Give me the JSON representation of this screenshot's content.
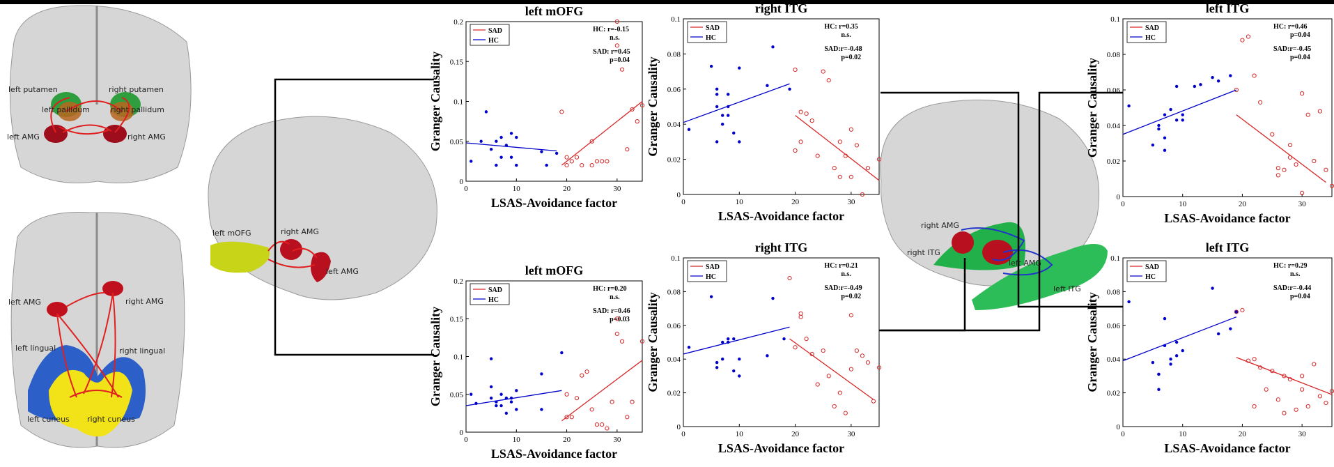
{
  "chart_data": [
    {
      "type": "scatter",
      "title": "left mOFG",
      "x_label": "LSAS-Avoidance factor",
      "y_label": "Granger Causality",
      "xlim": [
        0,
        35
      ],
      "ylim": [
        0,
        0.2
      ],
      "xticks": [
        0,
        10,
        20,
        30
      ],
      "yticks": [
        0,
        0.05,
        0.1,
        0.15,
        0.2
      ],
      "annotations": [
        "HC:  r=-0.15",
        "n.s.",
        "SAD: r=0.45",
        "p=0.04"
      ],
      "series": [
        {
          "name": "SAD",
          "color": "#d62728",
          "marker": "open",
          "x": [
            19,
            20,
            21,
            22,
            23,
            25,
            26,
            27,
            28,
            30,
            30,
            31,
            32,
            34,
            33,
            35,
            25,
            20
          ],
          "values": [
            0.087,
            0.03,
            0.025,
            0.03,
            0.02,
            0.05,
            0.025,
            0.025,
            0.025,
            0.2,
            0.17,
            0.14,
            0.04,
            0.075,
            0.09,
            0.095,
            0.02,
            0.02
          ],
          "fit": {
            "x": [
              19,
              35
            ],
            "values": [
              0.02,
              0.1
            ]
          }
        },
        {
          "name": "HC",
          "color": "#0000cc",
          "marker": "filled",
          "x": [
            1,
            3,
            4,
            5,
            6,
            6,
            7,
            7,
            8,
            9,
            9,
            10,
            10,
            15,
            16,
            18
          ],
          "values": [
            0.025,
            0.05,
            0.087,
            0.04,
            0.02,
            0.05,
            0.03,
            0.055,
            0.045,
            0.03,
            0.06,
            0.02,
            0.055,
            0.037,
            0.02,
            0.035
          ],
          "fit": {
            "x": [
              0,
              18
            ],
            "values": [
              0.048,
              0.038
            ]
          }
        }
      ]
    },
    {
      "type": "scatter",
      "title": "right ITG",
      "x_label": "LSAS-Avoidance factor",
      "y_label": "Granger Causality",
      "xlim": [
        0,
        35
      ],
      "ylim": [
        0,
        0.1
      ],
      "xticks": [
        0,
        10,
        20,
        30
      ],
      "yticks": [
        0,
        0.02,
        0.04,
        0.06,
        0.08,
        0.1
      ],
      "annotations": [
        "HC:  r=0.35",
        "n.s.",
        "SAD:r=-0.48",
        "p=0.02"
      ],
      "series": [
        {
          "name": "SAD",
          "color": "#d62728",
          "marker": "open",
          "x": [
            20,
            20,
            21,
            22,
            23,
            24,
            25,
            26,
            27,
            28,
            28,
            29,
            30,
            31,
            32,
            33,
            35,
            30,
            21
          ],
          "values": [
            0.071,
            0.025,
            0.047,
            0.046,
            0.042,
            0.022,
            0.07,
            0.065,
            0.015,
            0.03,
            0.01,
            0.022,
            0.037,
            0.028,
            0.0,
            0.015,
            0.02,
            0.01,
            0.03
          ],
          "fit": {
            "x": [
              20,
              35
            ],
            "values": [
              0.045,
              0.008
            ]
          }
        },
        {
          "name": "HC",
          "color": "#0000cc",
          "marker": "filled",
          "x": [
            1,
            5,
            6,
            6,
            6,
            7,
            7,
            8,
            8,
            9,
            10,
            10,
            15,
            16,
            19,
            6,
            8
          ],
          "values": [
            0.037,
            0.073,
            0.057,
            0.06,
            0.05,
            0.045,
            0.04,
            0.057,
            0.045,
            0.035,
            0.072,
            0.03,
            0.062,
            0.084,
            0.06,
            0.03,
            0.05
          ],
          "fit": {
            "x": [
              0,
              19
            ],
            "values": [
              0.041,
              0.063
            ]
          }
        }
      ]
    },
    {
      "type": "scatter",
      "title": "left ITG",
      "x_label": "LSAS-Avoidance factor",
      "y_label": "Granger Causality",
      "xlim": [
        0,
        35
      ],
      "ylim": [
        0,
        0.1
      ],
      "xticks": [
        0,
        10,
        20,
        30
      ],
      "yticks": [
        0,
        0.02,
        0.04,
        0.06,
        0.08,
        0.1
      ],
      "annotations": [
        "HC:  r=0.46",
        "p=0.04",
        "SAD:r=-0.45",
        "p=0.04"
      ],
      "series": [
        {
          "name": "SAD",
          "color": "#d62728",
          "marker": "open",
          "x": [
            19,
            20,
            21,
            22,
            23,
            25,
            26,
            27,
            28,
            29,
            30,
            30,
            31,
            32,
            33,
            34,
            35,
            26,
            28
          ],
          "values": [
            0.06,
            0.088,
            0.09,
            0.068,
            0.053,
            0.035,
            0.016,
            0.015,
            0.029,
            0.018,
            0.002,
            0.058,
            0.046,
            0.02,
            0.048,
            0.015,
            0.006,
            0.012,
            0.022
          ],
          "fit": {
            "x": [
              19,
              34
            ],
            "values": [
              0.046,
              0.008
            ]
          }
        },
        {
          "name": "HC",
          "color": "#0000cc",
          "marker": "filled",
          "x": [
            1,
            5,
            6,
            7,
            7,
            8,
            9,
            9,
            10,
            10,
            12,
            13,
            15,
            16,
            18,
            7,
            6
          ],
          "values": [
            0.051,
            0.029,
            0.04,
            0.046,
            0.033,
            0.049,
            0.043,
            0.062,
            0.046,
            0.043,
            0.062,
            0.063,
            0.067,
            0.065,
            0.068,
            0.026,
            0.038
          ],
          "fit": {
            "x": [
              0,
              19
            ],
            "values": [
              0.035,
              0.06
            ]
          }
        }
      ]
    },
    {
      "type": "scatter",
      "title": "left mOFG",
      "x_label": "LSAS-Avoidance factor",
      "y_label": "Granger Causality",
      "xlim": [
        0,
        35
      ],
      "ylim": [
        0,
        0.2
      ],
      "xticks": [
        0,
        10,
        20,
        30
      ],
      "yticks": [
        0,
        0.05,
        0.1,
        0.15,
        0.2
      ],
      "annotations": [
        "HC:  r=0.20",
        "n.s.",
        "SAD: r=0.46",
        "p=0.03"
      ],
      "series": [
        {
          "name": "SAD",
          "color": "#d62728",
          "marker": "open",
          "x": [
            20,
            20,
            22,
            23,
            24,
            25,
            26,
            27,
            29,
            30,
            30,
            31,
            32,
            33,
            35,
            28,
            21
          ],
          "values": [
            0.05,
            0.02,
            0.045,
            0.075,
            0.08,
            0.03,
            0.01,
            0.01,
            0.04,
            0.15,
            0.13,
            0.12,
            0.02,
            0.04,
            0.12,
            0.005,
            0.02
          ],
          "fit": {
            "x": [
              19,
              35
            ],
            "values": [
              0.015,
              0.095
            ]
          }
        },
        {
          "name": "HC",
          "color": "#0000cc",
          "marker": "filled",
          "x": [
            1,
            2,
            5,
            5,
            6,
            6,
            7,
            7,
            8,
            8,
            9,
            9,
            10,
            10,
            15,
            15,
            19,
            5
          ],
          "values": [
            0.05,
            0.038,
            0.097,
            0.045,
            0.035,
            0.04,
            0.05,
            0.035,
            0.025,
            0.045,
            0.045,
            0.04,
            0.055,
            0.03,
            0.077,
            0.03,
            0.105,
            0.06
          ],
          "fit": {
            "x": [
              0,
              19
            ],
            "values": [
              0.035,
              0.055
            ]
          }
        }
      ]
    },
    {
      "type": "scatter",
      "title": "right ITG",
      "x_label": "LSAS-Avoidance factor",
      "y_label": "Granger Causality",
      "xlim": [
        0,
        35
      ],
      "ylim": [
        0,
        0.1
      ],
      "xticks": [
        0,
        10,
        20,
        30
      ],
      "yticks": [
        0,
        0.02,
        0.04,
        0.06,
        0.08,
        0.1
      ],
      "annotations": [
        "HC:  r=0.21",
        "n.s.",
        "SAD:r=-0.49",
        "p=0.02"
      ],
      "series": [
        {
          "name": "SAD",
          "color": "#d62728",
          "marker": "open",
          "x": [
            19,
            20,
            21,
            21,
            22,
            23,
            24,
            25,
            26,
            27,
            28,
            29,
            30,
            30,
            31,
            32,
            33,
            34,
            35
          ],
          "values": [
            0.088,
            0.047,
            0.067,
            0.065,
            0.052,
            0.043,
            0.025,
            0.045,
            0.03,
            0.012,
            0.02,
            0.008,
            0.066,
            0.034,
            0.045,
            0.042,
            0.038,
            0.015,
            0.035
          ],
          "fit": {
            "x": [
              19,
              34
            ],
            "values": [
              0.052,
              0.016
            ]
          }
        },
        {
          "name": "HC",
          "color": "#0000cc",
          "marker": "filled",
          "x": [
            1,
            5,
            6,
            6,
            7,
            7,
            8,
            8,
            9,
            9,
            10,
            10,
            15,
            16,
            18
          ],
          "values": [
            0.047,
            0.077,
            0.035,
            0.038,
            0.05,
            0.04,
            0.052,
            0.05,
            0.033,
            0.052,
            0.04,
            0.03,
            0.042,
            0.076,
            0.052
          ],
          "fit": {
            "x": [
              0,
              19
            ],
            "values": [
              0.043,
              0.059
            ]
          }
        }
      ]
    },
    {
      "type": "scatter",
      "title": "left ITG",
      "x_label": "LSAS-Avoidance factor",
      "y_label": "Granger Causality",
      "xlim": [
        0,
        35
      ],
      "ylim": [
        0,
        0.1
      ],
      "xticks": [
        0,
        10,
        20,
        30
      ],
      "yticks": [
        0,
        0.02,
        0.04,
        0.06,
        0.08,
        0.1
      ],
      "annotations": [
        "HC:  r=0.29",
        "n.s.",
        "SAD:r=-0.44",
        "p=0.04"
      ],
      "series": [
        {
          "name": "SAD",
          "color": "#d62728",
          "marker": "open",
          "x": [
            19,
            20,
            21,
            22,
            23,
            24,
            25,
            26,
            27,
            28,
            29,
            30,
            30,
            31,
            32,
            33,
            34,
            35,
            22,
            27
          ],
          "values": [
            0.068,
            0.069,
            0.039,
            0.04,
            0.035,
            0.022,
            0.033,
            0.016,
            0.03,
            0.028,
            0.01,
            0.03,
            0.022,
            0.012,
            0.037,
            0.018,
            0.014,
            0.021,
            0.012,
            0.008
          ],
          "fit": {
            "x": [
              19,
              35
            ],
            "values": [
              0.041,
              0.019
            ]
          }
        },
        {
          "name": "HC",
          "color": "#0000cc",
          "marker": "filled",
          "x": [
            1,
            5,
            6,
            6,
            7,
            7,
            8,
            8,
            9,
            9,
            10,
            15,
            16,
            18,
            19,
            6
          ],
          "values": [
            0.074,
            0.038,
            0.031,
            0.022,
            0.064,
            0.048,
            0.037,
            0.04,
            0.042,
            0.05,
            0.045,
            0.082,
            0.055,
            0.058,
            0.068,
            0.031
          ],
          "fit": {
            "x": [
              0,
              19
            ],
            "values": [
              0.039,
              0.065
            ]
          }
        }
      ]
    }
  ],
  "brain_labels": [
    [
      "left putamen",
      "right putamen",
      "left pallidum",
      "right pallidum",
      "left AMG",
      "right AMG"
    ],
    [
      "left AMG",
      "right AMG",
      "left lingual",
      "right lingual",
      "left cuneus",
      "right cuneus"
    ],
    [
      "left mOFG",
      "right AMG",
      "left AMG"
    ],
    [
      "right AMG",
      "right ITG",
      "left AMG",
      "left ITG"
    ]
  ]
}
